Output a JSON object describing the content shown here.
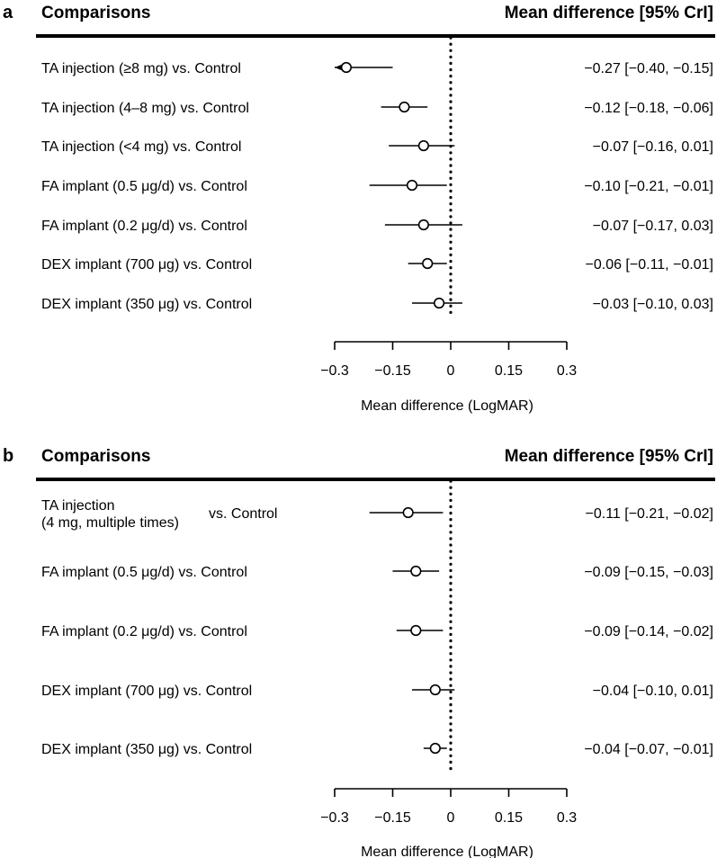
{
  "chart_data": [
    {
      "type": "forest",
      "panel": "a",
      "header_left": "Comparisons",
      "header_right": "Mean difference [95% CrI]",
      "xlabel": "Mean difference (LogMAR)",
      "xlim": [
        -0.3,
        0.3
      ],
      "ticks": [
        "−0.3",
        "−0.15",
        "0",
        "0.15",
        "0.3"
      ],
      "tick_values": [
        -0.3,
        -0.15,
        0,
        0.15,
        0.3
      ],
      "reference_line": 0,
      "rows": [
        {
          "label": "TA injection (≥8 mg) vs. Control",
          "mean": -0.27,
          "lower": -0.4,
          "upper": -0.15,
          "text": "−0.27 [−0.40, −0.15]"
        },
        {
          "label": "TA injection (4–8 mg) vs. Control",
          "mean": -0.12,
          "lower": -0.18,
          "upper": -0.06,
          "text": "−0.12 [−0.18, −0.06]"
        },
        {
          "label": "TA injection (<4 mg) vs. Control",
          "mean": -0.07,
          "lower": -0.16,
          "upper": 0.01,
          "text": "−0.07 [−0.16,  0.01]"
        },
        {
          "label": "FA implant (0.5 μg/d) vs. Control",
          "mean": -0.1,
          "lower": -0.21,
          "upper": -0.01,
          "text": "−0.10 [−0.21, −0.01]"
        },
        {
          "label": "FA implant (0.2 μg/d) vs. Control",
          "mean": -0.07,
          "lower": -0.17,
          "upper": 0.03,
          "text": "−0.07 [−0.17,  0.03]"
        },
        {
          "label": "DEX implant (700 μg) vs. Control",
          "mean": -0.06,
          "lower": -0.11,
          "upper": -0.01,
          "text": "−0.06 [−0.11, −0.01]"
        },
        {
          "label": "DEX implant (350 μg) vs. Control",
          "mean": -0.03,
          "lower": -0.1,
          "upper": 0.03,
          "text": "−0.03 [−0.10,  0.03]"
        }
      ]
    },
    {
      "type": "forest",
      "panel": "b",
      "header_left": "Comparisons",
      "header_right": "Mean difference [95% CrI]",
      "xlabel": "Mean difference (LogMAR)",
      "xlim": [
        -0.3,
        0.3
      ],
      "ticks": [
        "−0.3",
        "−0.15",
        "0",
        "0.15",
        "0.3"
      ],
      "tick_values": [
        -0.3,
        -0.15,
        0,
        0.15,
        0.3
      ],
      "reference_line": 0,
      "rows": [
        {
          "label": "TA injection",
          "label_line2": "(4 mg, multiple times)",
          "label_suffix": "vs. Control",
          "mean": -0.11,
          "lower": -0.21,
          "upper": -0.02,
          "text": "−0.11 [−0.21, −0.02]"
        },
        {
          "label": "FA implant (0.5 μg/d) vs. Control",
          "mean": -0.09,
          "lower": -0.15,
          "upper": -0.03,
          "text": "−0.09 [−0.15, −0.03]"
        },
        {
          "label": "FA implant (0.2 μg/d) vs. Control",
          "mean": -0.09,
          "lower": -0.14,
          "upper": -0.02,
          "text": "−0.09 [−0.14, −0.02]"
        },
        {
          "label": "DEX implant (700 μg) vs. Control",
          "mean": -0.04,
          "lower": -0.1,
          "upper": 0.01,
          "text": "−0.04 [−0.10,  0.01]"
        },
        {
          "label": "DEX implant (350 μg) vs. Control",
          "mean": -0.04,
          "lower": -0.07,
          "upper": -0.01,
          "text": "−0.04 [−0.07, −0.01]"
        }
      ]
    }
  ]
}
